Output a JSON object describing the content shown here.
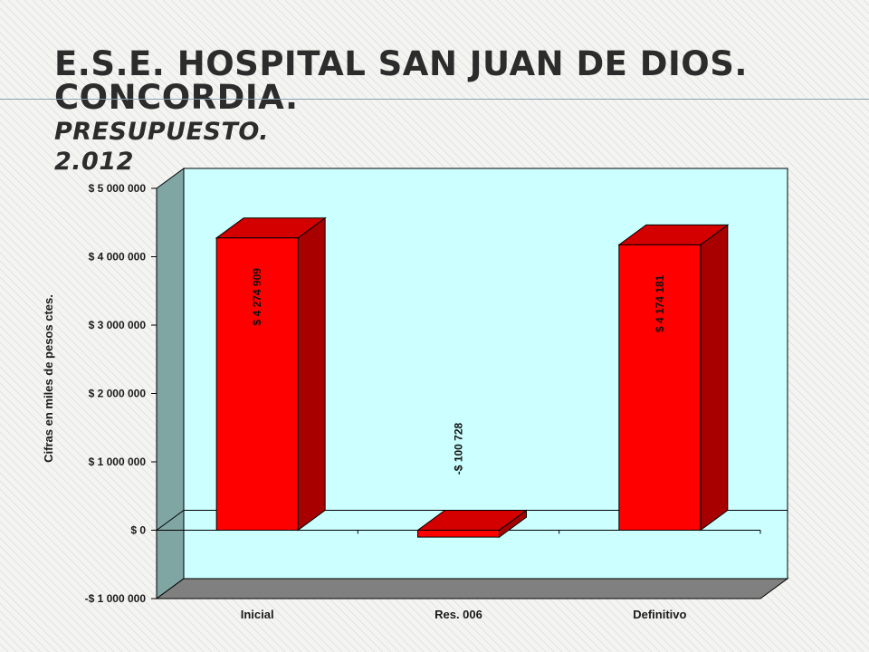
{
  "slide": {
    "title_line1": "E.S.E. Hospital San Juan de Dios.  Concordia.",
    "title_line2": "Presupuesto.",
    "title_line3": "2.012"
  },
  "chart_data": {
    "type": "bar",
    "style": "3d-column",
    "categories": [
      "Inicial",
      "Res. 006",
      "Definitivo"
    ],
    "values": [
      4274909,
      -100728,
      4174181
    ],
    "data_labels": [
      "$ 4 274 909",
      "-$ 100 728",
      "$ 4 174 181"
    ],
    "ylabel": "Cifras en miles de pesos ctes.",
    "ylim": [
      -1000000,
      5000000
    ],
    "yticks": [
      -1000000,
      0,
      1000000,
      2000000,
      3000000,
      4000000,
      5000000
    ],
    "ytick_labels": [
      "-$ 1 000 000",
      "$ 0",
      "$ 1 000 000",
      "$ 2 000 000",
      "$ 3 000 000",
      "$ 4 000 000",
      "$ 5 000 000"
    ],
    "grid": false,
    "legend": "none",
    "colors": {
      "bar_front": "#ff0000",
      "bar_side": "#a80000",
      "bar_top": "#d40000",
      "plot_back": "#ccffff",
      "plot_wall": "#80a6a3",
      "plot_floor": "#808080"
    }
  }
}
